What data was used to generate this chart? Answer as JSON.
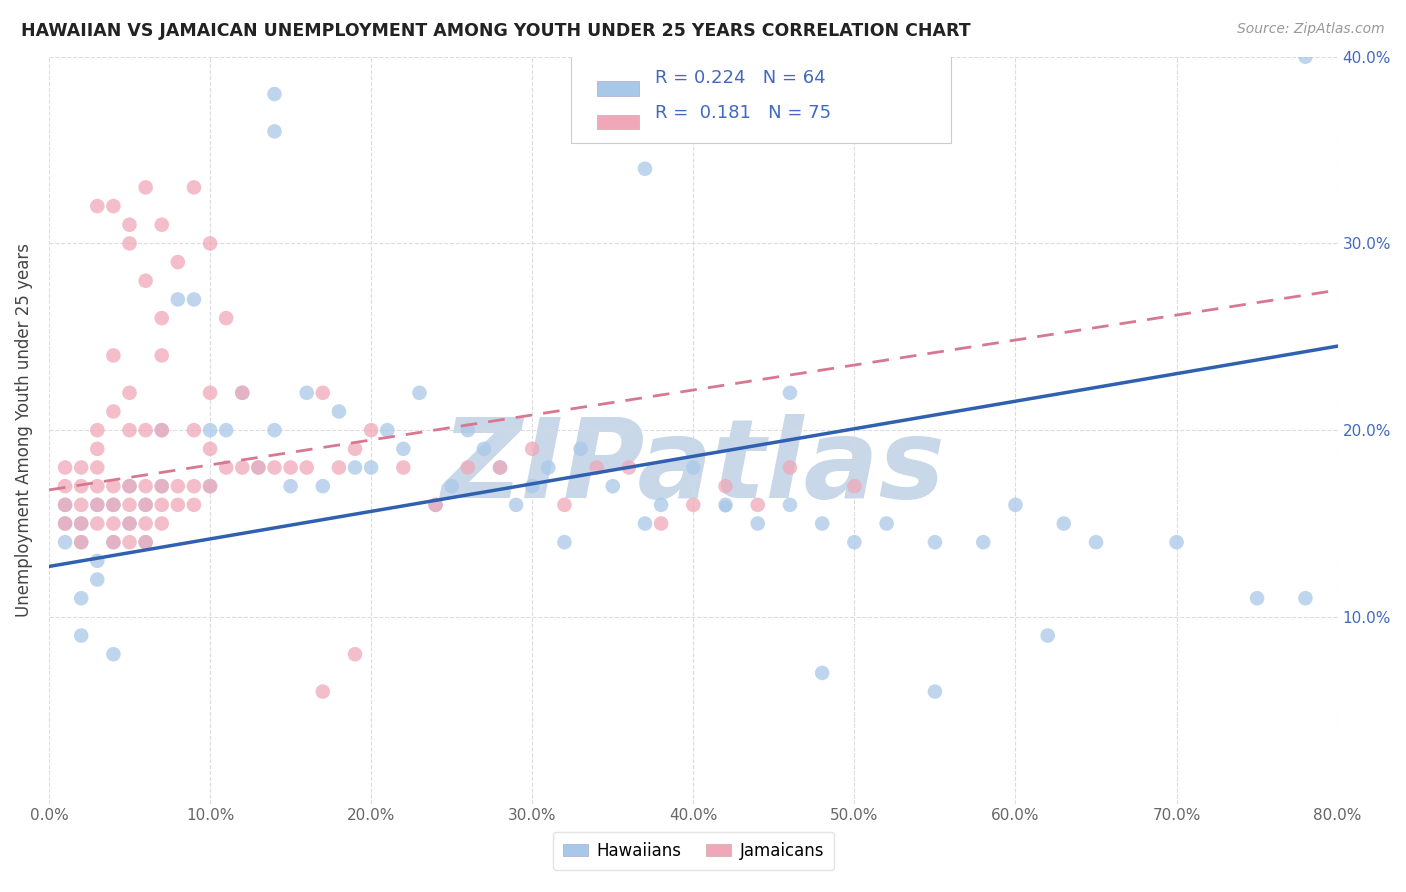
{
  "title": "HAWAIIAN VS JAMAICAN UNEMPLOYMENT AMONG YOUTH UNDER 25 YEARS CORRELATION CHART",
  "source": "Source: ZipAtlas.com",
  "ylabel": "Unemployment Among Youth under 25 years",
  "xlim": [
    0.0,
    0.8
  ],
  "ylim": [
    0.0,
    0.4
  ],
  "xticks": [
    0.0,
    0.1,
    0.2,
    0.3,
    0.4,
    0.5,
    0.6,
    0.7,
    0.8
  ],
  "yticks": [
    0.0,
    0.1,
    0.2,
    0.3,
    0.4
  ],
  "xtick_labels": [
    "0.0%",
    "10.0%",
    "20.0%",
    "30.0%",
    "40.0%",
    "50.0%",
    "60.0%",
    "70.0%",
    "80.0%"
  ],
  "ytick_labels_right": [
    "",
    "10.0%",
    "20.0%",
    "30.0%",
    "40.0%"
  ],
  "hawaiian_color": "#a8c8e8",
  "jamaican_color": "#f0a8b8",
  "trend_hawaiian_color": "#3060b0",
  "trend_jamaican_color": "#d87890",
  "R_hawaiian": 0.224,
  "N_hawaiian": 64,
  "R_jamaican": 0.181,
  "N_jamaican": 75,
  "hawaiian_x": [
    0.01,
    0.01,
    0.01,
    0.02,
    0.02,
    0.02,
    0.02,
    0.03,
    0.03,
    0.03,
    0.04,
    0.04,
    0.04,
    0.05,
    0.05,
    0.06,
    0.06,
    0.07,
    0.07,
    0.08,
    0.09,
    0.1,
    0.1,
    0.11,
    0.12,
    0.13,
    0.14,
    0.15,
    0.16,
    0.17,
    0.18,
    0.19,
    0.2,
    0.21,
    0.22,
    0.23,
    0.24,
    0.25,
    0.26,
    0.27,
    0.28,
    0.29,
    0.3,
    0.31,
    0.32,
    0.33,
    0.35,
    0.37,
    0.38,
    0.4,
    0.42,
    0.44,
    0.46,
    0.48,
    0.5,
    0.52,
    0.55,
    0.58,
    0.6,
    0.63,
    0.65,
    0.7,
    0.75,
    0.78
  ],
  "hawaiian_y": [
    0.14,
    0.15,
    0.16,
    0.09,
    0.11,
    0.14,
    0.15,
    0.12,
    0.13,
    0.16,
    0.08,
    0.14,
    0.16,
    0.15,
    0.17,
    0.14,
    0.16,
    0.17,
    0.2,
    0.27,
    0.27,
    0.17,
    0.2,
    0.2,
    0.22,
    0.18,
    0.2,
    0.17,
    0.22,
    0.17,
    0.21,
    0.18,
    0.18,
    0.2,
    0.19,
    0.22,
    0.16,
    0.17,
    0.2,
    0.19,
    0.18,
    0.16,
    0.17,
    0.18,
    0.14,
    0.19,
    0.17,
    0.15,
    0.16,
    0.18,
    0.16,
    0.15,
    0.16,
    0.15,
    0.14,
    0.15,
    0.14,
    0.14,
    0.16,
    0.15,
    0.14,
    0.14,
    0.11,
    0.4
  ],
  "hawaiian_x_outliers": [
    0.14,
    0.14,
    0.37,
    0.46,
    0.55,
    0.48,
    0.62,
    0.78
  ],
  "hawaiian_y_outliers": [
    0.38,
    0.36,
    0.34,
    0.22,
    0.06,
    0.07,
    0.09,
    0.11
  ],
  "jamaican_x": [
    0.01,
    0.01,
    0.01,
    0.01,
    0.02,
    0.02,
    0.02,
    0.02,
    0.02,
    0.03,
    0.03,
    0.03,
    0.03,
    0.03,
    0.03,
    0.04,
    0.04,
    0.04,
    0.04,
    0.04,
    0.04,
    0.05,
    0.05,
    0.05,
    0.05,
    0.05,
    0.05,
    0.06,
    0.06,
    0.06,
    0.06,
    0.06,
    0.06,
    0.07,
    0.07,
    0.07,
    0.07,
    0.07,
    0.07,
    0.08,
    0.08,
    0.08,
    0.09,
    0.09,
    0.09,
    0.1,
    0.1,
    0.1,
    0.1,
    0.11,
    0.11,
    0.12,
    0.12,
    0.13,
    0.14,
    0.15,
    0.16,
    0.17,
    0.18,
    0.19,
    0.2,
    0.22,
    0.24,
    0.26,
    0.28,
    0.3,
    0.32,
    0.34,
    0.36,
    0.38,
    0.4,
    0.42,
    0.44,
    0.46,
    0.5
  ],
  "jamaican_y": [
    0.15,
    0.16,
    0.17,
    0.18,
    0.14,
    0.15,
    0.16,
    0.17,
    0.18,
    0.15,
    0.16,
    0.17,
    0.18,
    0.19,
    0.2,
    0.14,
    0.15,
    0.16,
    0.17,
    0.21,
    0.24,
    0.14,
    0.15,
    0.16,
    0.17,
    0.2,
    0.22,
    0.14,
    0.15,
    0.16,
    0.17,
    0.2,
    0.28,
    0.15,
    0.16,
    0.17,
    0.2,
    0.24,
    0.26,
    0.16,
    0.17,
    0.29,
    0.16,
    0.17,
    0.2,
    0.17,
    0.19,
    0.22,
    0.3,
    0.18,
    0.26,
    0.18,
    0.22,
    0.18,
    0.18,
    0.18,
    0.18,
    0.22,
    0.18,
    0.19,
    0.2,
    0.18,
    0.16,
    0.18,
    0.18,
    0.19,
    0.16,
    0.18,
    0.18,
    0.15,
    0.16,
    0.17,
    0.16,
    0.18,
    0.17
  ],
  "jamaican_x_outliers": [
    0.03,
    0.04,
    0.05,
    0.05,
    0.06,
    0.07,
    0.09,
    0.17,
    0.19
  ],
  "jamaican_y_outliers": [
    0.32,
    0.32,
    0.3,
    0.31,
    0.33,
    0.31,
    0.33,
    0.06,
    0.08
  ],
  "watermark": "ZIPatlas",
  "watermark_color": "#c8d8e8",
  "background_color": "#ffffff",
  "grid_color": "#d8d8e0",
  "trend_h_x0": 0.0,
  "trend_h_y0": 0.127,
  "trend_h_x1": 0.8,
  "trend_h_y1": 0.245,
  "trend_j_x0": 0.0,
  "trend_j_y0": 0.168,
  "trend_j_x1": 0.8,
  "trend_j_y1": 0.275
}
